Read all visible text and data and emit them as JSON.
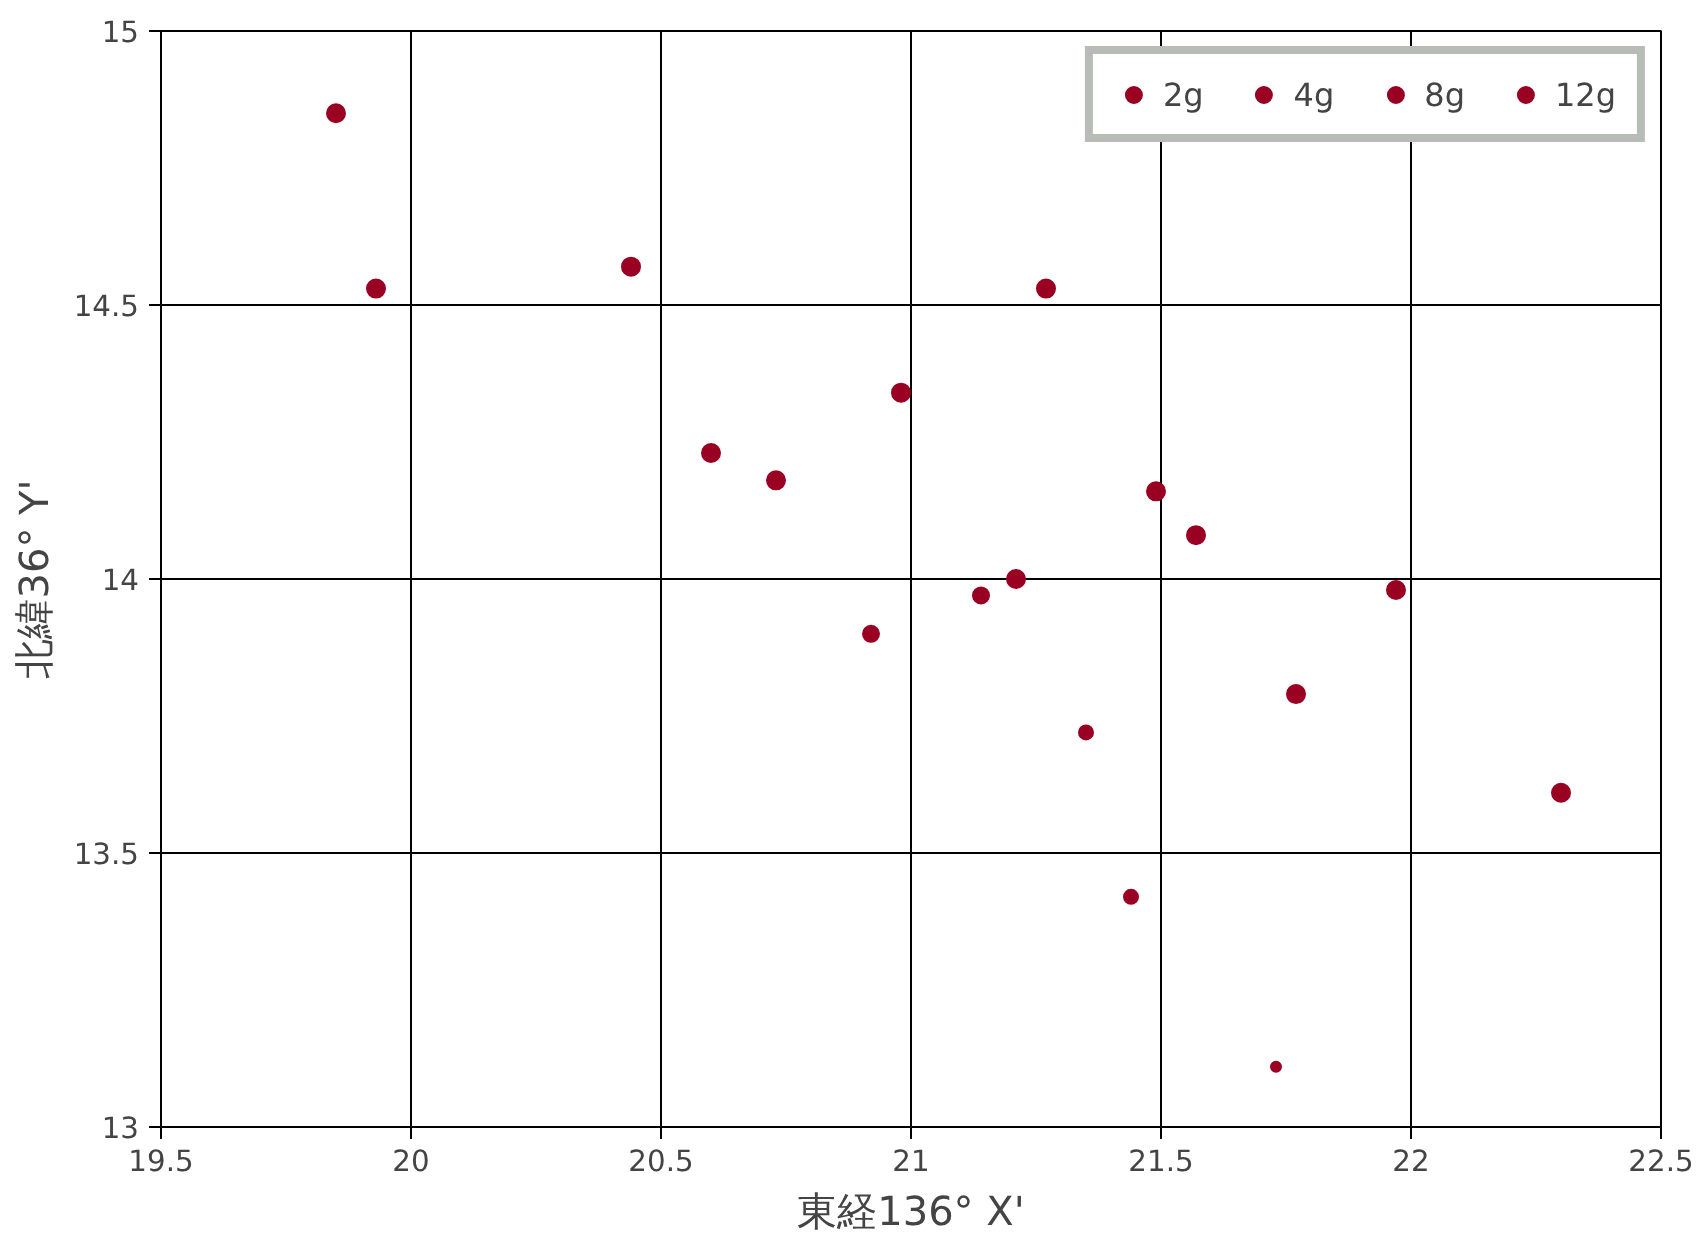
{
  "chart_data": {
    "type": "scatter",
    "xlabel": "東経136° X'",
    "ylabel": "北緯36° Y'",
    "xlim": [
      19.5,
      22.5
    ],
    "xticks": [
      19.5,
      20,
      20.5,
      21,
      21.5,
      22,
      22.5
    ],
    "ylim": [
      13,
      15
    ],
    "yticks": [
      13,
      13.5,
      14,
      14.5,
      15
    ],
    "grid": true,
    "legend": "top right",
    "marker": "circle",
    "series": [
      {
        "name": "2g",
        "color": "#990022",
        "x": [
          21.73
        ],
        "values": [
          13.11
        ]
      },
      {
        "name": "4g",
        "color": "#990022",
        "x": [
          21.35,
          21.44
        ],
        "values": [
          13.72,
          13.42
        ]
      },
      {
        "name": "8g",
        "color": "#990022",
        "x": [
          20.92,
          21.14
        ],
        "values": [
          13.9,
          13.97
        ]
      },
      {
        "name": "12g",
        "color": "#990022",
        "x": [
          19.85,
          19.93,
          20.44,
          20.6,
          20.73,
          20.98,
          21.21,
          21.27,
          21.49,
          21.57,
          21.97,
          21.77,
          22.3
        ],
        "values": [
          14.85,
          14.53,
          14.57,
          14.23,
          14.18,
          14.34,
          14.0,
          14.53,
          14.16,
          14.08,
          13.98,
          13.79,
          13.61
        ]
      }
    ]
  }
}
